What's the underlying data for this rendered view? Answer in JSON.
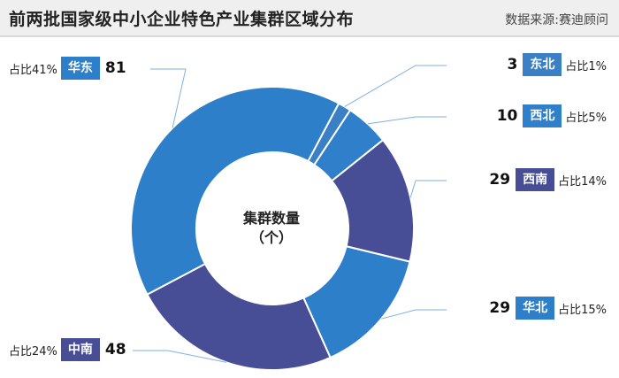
{
  "header": {
    "title": "前两批国家级中小企业特色产业集群区域分布",
    "source": "数据来源:赛迪顾问"
  },
  "center": {
    "line1": "集群数量",
    "line2": "（个）"
  },
  "chart_data": {
    "type": "pie",
    "donut": true,
    "title": "前两批国家级中小企业特色产业集群区域分布",
    "center_label": "集群数量（个）",
    "slices": [
      {
        "name": "东北",
        "value": 3,
        "share_label": "占比1%",
        "color": "#3b7fc4"
      },
      {
        "name": "西北",
        "value": 10,
        "share_label": "占比5%",
        "color": "#2f7fcb"
      },
      {
        "name": "西南",
        "value": 29,
        "share_label": "占比14%",
        "color": "#474e96"
      },
      {
        "name": "华北",
        "value": 29,
        "share_label": "占比15%",
        "color": "#2e7fca"
      },
      {
        "name": "中南",
        "value": 48,
        "share_label": "占比24%",
        "color": "#474e96"
      },
      {
        "name": "华东",
        "value": 81,
        "share_label": "占比41%",
        "color": "#2e7fca"
      }
    ]
  }
}
